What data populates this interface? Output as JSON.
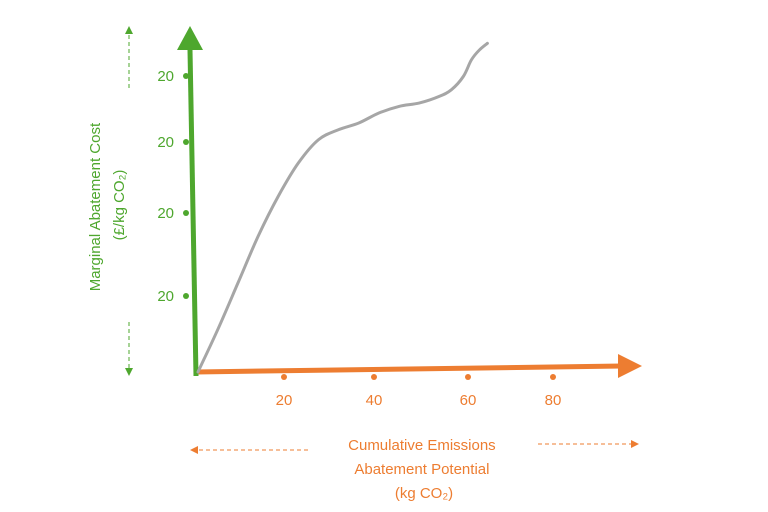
{
  "chart_data": {
    "type": "line",
    "xlabel": [
      "Cumulative Emissions",
      "Abatement Potential",
      "(kg CO₂)"
    ],
    "ylabel": [
      "Marginal Abatement Cost",
      "(£/kg CO₂)"
    ],
    "x_ticks": [
      "20",
      "40",
      "60",
      "80"
    ],
    "y_ticks": [
      "20",
      "20",
      "20",
      "20"
    ],
    "xlim": [
      0,
      100
    ],
    "ylim": [
      0,
      100
    ],
    "grid": false,
    "series": [
      {
        "x": [
          0,
          5,
          10,
          15,
          20,
          25,
          30,
          35,
          40,
          45,
          50,
          55,
          60,
          63,
          66,
          68,
          70,
          72
        ],
        "y": [
          0,
          13,
          27,
          41,
          53,
          63,
          70,
          73,
          75,
          78,
          80,
          81,
          83,
          85,
          89,
          94,
          97,
          99
        ],
        "color": "#a6a6a6"
      }
    ],
    "colors": {
      "y_axis": "#4ea72e",
      "x_axis": "#ed7d31",
      "curve": "#a6a6a6"
    }
  }
}
